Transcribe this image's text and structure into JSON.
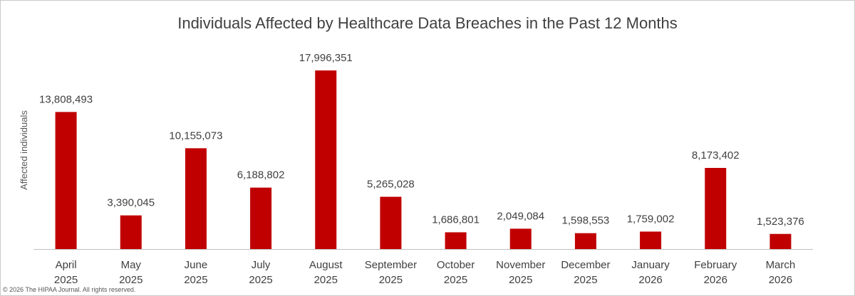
{
  "chart_data": {
    "type": "bar",
    "title": "Individuals Affected by Healthcare Data Breaches in the Past 12 Months",
    "ylabel": "Affected individuals",
    "xlabel": "",
    "categories": [
      [
        "April",
        "2025"
      ],
      [
        "May",
        "2025"
      ],
      [
        "June",
        "2025"
      ],
      [
        "July",
        "2025"
      ],
      [
        "August",
        "2025"
      ],
      [
        "September",
        "2025"
      ],
      [
        "October",
        "2025"
      ],
      [
        "November",
        "2025"
      ],
      [
        "December",
        "2025"
      ],
      [
        "January",
        "2026"
      ],
      [
        "February",
        "2026"
      ],
      [
        "March",
        "2026"
      ]
    ],
    "values": [
      13808493,
      3390045,
      10155073,
      6188802,
      17996351,
      5265028,
      1686801,
      2049084,
      1598553,
      1759002,
      8173402,
      1523376
    ],
    "value_labels": [
      "13,808,493",
      "3,390,045",
      "10,155,073",
      "6,188,802",
      "17,996,351",
      "5,265,028",
      "1,686,801",
      "2,049,084",
      "1,598,553",
      "1,759,002",
      "8,173,402",
      "1,523,376"
    ],
    "ylim": [
      0,
      18000000
    ],
    "grid": false,
    "legend": "none",
    "bar_color": "#c00000"
  },
  "footer": {
    "copyright": "© 2026 The HIPAA Journal. All rights reserved."
  }
}
